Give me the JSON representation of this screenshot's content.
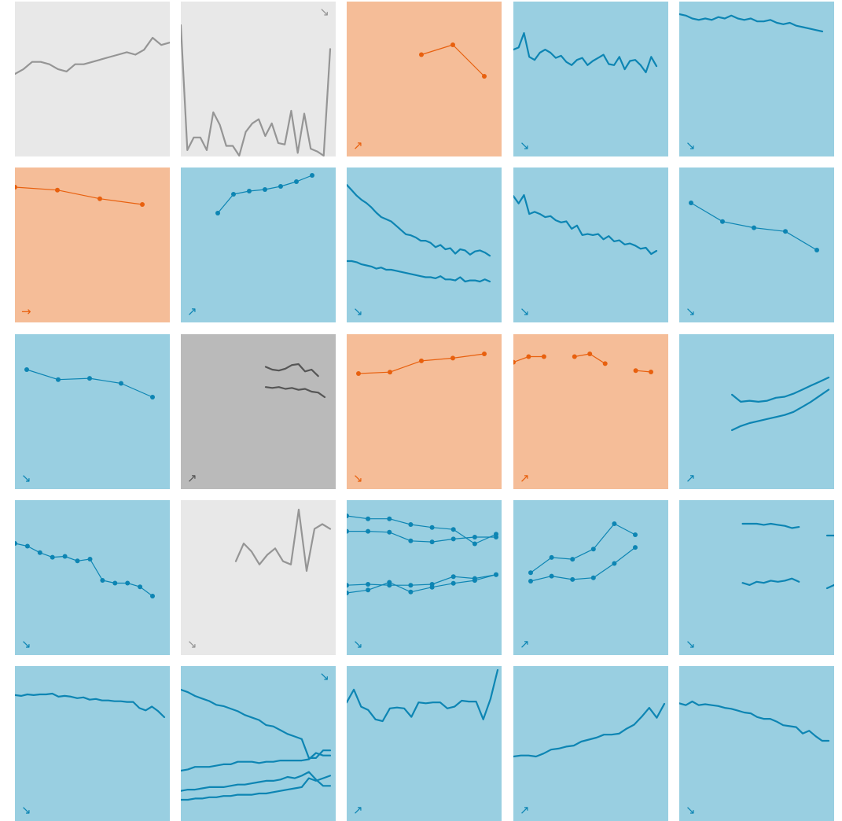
{
  "colors": {
    "blue_bg": "#99cfe1",
    "blue_fg": "#0d85b3",
    "orange_bg": "#f5bd98",
    "orange_fg": "#e8600e",
    "light_gray_bg": "#e8e8e8",
    "light_gray_fg": "#959595",
    "dark_gray_bg": "#bababa",
    "dark_gray_fg": "#555555"
  },
  "arrow_glyphs": {
    "up": "↗",
    "down": "↘",
    "flat": "→"
  },
  "chart_data": [
    {
      "id": "r1c1",
      "type": "line",
      "theme": "light_gray",
      "trend": null,
      "markers": false,
      "series": [
        {
          "values": [
            44,
            46,
            49,
            49,
            48,
            46,
            45,
            48,
            48,
            49,
            50,
            51,
            52,
            53,
            52,
            54,
            59,
            56,
            57
          ]
        }
      ]
    },
    {
      "id": "r1c2",
      "type": "line",
      "theme": "light_gray",
      "trend": "down",
      "markers": false,
      "series": [
        {
          "values": [
            93,
            4,
            13,
            13,
            4,
            31,
            22,
            7,
            7,
            0,
            17,
            23,
            26,
            14,
            23,
            9,
            8,
            32,
            2,
            30,
            5,
            3,
            0,
            76
          ]
        }
      ]
    },
    {
      "id": "r1c3",
      "type": "line",
      "theme": "orange",
      "trend": "up",
      "markers": true,
      "series": [
        {
          "values": [
            61,
            76,
            28
          ]
        }
      ]
    },
    {
      "id": "r1c4",
      "type": "line",
      "theme": "blue",
      "trend": "down",
      "markers": false,
      "series": [
        {
          "values": [
            55,
            57,
            71,
            48,
            45,
            52,
            55,
            52,
            47,
            49,
            43,
            40,
            45,
            47,
            40,
            44,
            47,
            50,
            41,
            40,
            48,
            36,
            44,
            45,
            40,
            33,
            48,
            39
          ]
        }
      ]
    },
    {
      "id": "r1c5",
      "type": "line",
      "theme": "blue",
      "trend": "down",
      "markers": false,
      "series": [
        {
          "values": [
            75,
            74,
            72,
            71,
            72,
            71,
            73,
            72,
            74,
            72,
            71,
            72,
            70,
            70,
            71,
            69,
            68,
            69,
            67,
            66,
            65,
            64,
            63
          ]
        }
      ]
    },
    {
      "id": "r2c1",
      "type": "line",
      "theme": "orange",
      "trend": "flat",
      "markers": true,
      "series": [
        {
          "values": [
            70,
            68,
            62,
            58
          ]
        }
      ]
    },
    {
      "id": "r2c2",
      "type": "line",
      "theme": "blue",
      "trend": "up",
      "markers": true,
      "series": [
        {
          "values": [
            50,
            62,
            64,
            65,
            67,
            70,
            74
          ]
        }
      ]
    },
    {
      "id": "r2c3",
      "type": "line",
      "theme": "blue",
      "trend": "down",
      "markers": false,
      "series": [
        {
          "values": [
            100,
            95,
            90,
            86,
            83,
            79,
            74,
            70,
            68,
            66,
            62,
            58,
            54,
            53,
            51,
            48,
            48,
            46,
            42,
            44,
            40,
            41,
            36,
            40,
            39,
            35,
            38,
            39,
            37,
            34
          ]
        },
        {
          "values": [
            29,
            29,
            28,
            26,
            25,
            24,
            22,
            23,
            21,
            21,
            20,
            19,
            18,
            17,
            16,
            15,
            14,
            14,
            13,
            15,
            12,
            12,
            11,
            14,
            10,
            11,
            11,
            10,
            12,
            10
          ]
        }
      ]
    },
    {
      "id": "r2c4",
      "type": "line",
      "theme": "blue",
      "trend": "down",
      "markers": false,
      "series": [
        {
          "values": [
            95,
            88,
            96,
            78,
            80,
            78,
            75,
            76,
            72,
            70,
            71,
            64,
            67,
            58,
            59,
            58,
            59,
            54,
            57,
            52,
            53,
            49,
            50,
            48,
            45,
            46,
            40,
            43
          ]
        }
      ]
    },
    {
      "id": "r2c5",
      "type": "line",
      "theme": "blue",
      "trend": "down",
      "markers": true,
      "series": [
        {
          "values": [
            70,
            55,
            50,
            47,
            32
          ]
        }
      ]
    },
    {
      "id": "r3c1",
      "type": "line",
      "theme": "blue",
      "trend": "down",
      "markers": true,
      "series": [
        {
          "values": [
            85,
            77,
            78,
            74,
            63
          ]
        }
      ]
    },
    {
      "id": "r3c2",
      "type": "line",
      "theme": "dark_gray",
      "trend": "up",
      "markers": false,
      "series": [
        {
          "values": [
            80,
            77,
            76,
            78,
            82,
            83,
            75,
            77,
            70
          ]
        },
        {
          "values": [
            58,
            57,
            58,
            56,
            57,
            55,
            56,
            53,
            52,
            47
          ]
        }
      ]
    },
    {
      "id": "r3c3",
      "type": "line",
      "theme": "orange",
      "trend": "down",
      "markers": true,
      "series": [
        {
          "values": [
            71,
            72,
            80,
            82,
            85
          ]
        }
      ]
    },
    {
      "id": "r3c4",
      "type": "line",
      "theme": "orange",
      "trend": "up",
      "markers": true,
      "series": [
        {
          "values": [
            80,
            84,
            84,
            null,
            84,
            86,
            79,
            null,
            74,
            73
          ]
        }
      ]
    },
    {
      "id": "r3c5",
      "type": "line",
      "theme": "blue",
      "trend": "up",
      "markers": false,
      "series": [
        {
          "values": [
            null,
            null,
            null,
            null,
            null,
            null,
            48,
            41,
            42,
            41,
            42,
            45,
            46,
            49,
            53,
            57,
            61,
            65
          ]
        },
        {
          "values": [
            null,
            null,
            null,
            null,
            null,
            null,
            13,
            17,
            20,
            22,
            24,
            26,
            28,
            31,
            36,
            41,
            47,
            53
          ]
        }
      ]
    },
    {
      "id": "r4c1",
      "type": "line",
      "theme": "blue",
      "trend": "down",
      "markers": true,
      "series": [
        {
          "values": [
            90,
            87,
            80,
            75,
            76,
            71,
            73,
            50,
            47,
            47,
            43,
            33
          ]
        }
      ]
    },
    {
      "id": "r4c2",
      "type": "line",
      "theme": "light_gray",
      "trend": "down",
      "markers": false,
      "series": [
        {
          "values": [
            null,
            null,
            null,
            null,
            null,
            null,
            null,
            62,
            73,
            68,
            60,
            66,
            70,
            62,
            60,
            94,
            56,
            82,
            85,
            82
          ]
        }
      ]
    },
    {
      "id": "r4c3",
      "type": "line",
      "theme": "blue",
      "trend": "down",
      "markers": true,
      "series": [
        {
          "values": [
            100,
            97,
            97,
            91,
            88,
            86,
            71,
            81
          ]
        },
        {
          "values": [
            84,
            84,
            83,
            74,
            73,
            76,
            78,
            78
          ]
        },
        {
          "values": [
            28,
            29,
            28,
            28,
            29,
            37,
            35,
            39
          ]
        },
        {
          "values": [
            20,
            23,
            31,
            21,
            26,
            30,
            33,
            39
          ]
        }
      ]
    },
    {
      "id": "r4c4",
      "type": "line",
      "theme": "blue",
      "trend": "up",
      "markers": true,
      "series": [
        {
          "values": [
            42,
            60,
            58,
            70,
            100,
            87
          ]
        },
        {
          "values": [
            32,
            38,
            34,
            36,
            53,
            72
          ]
        }
      ]
    },
    {
      "id": "r4c5",
      "type": "line",
      "theme": "blue",
      "trend": "down",
      "markers": false,
      "series": [
        {
          "values": [
            null,
            null,
            null,
            null,
            null,
            null,
            null,
            null,
            null,
            85,
            85,
            85,
            84,
            85,
            84,
            83,
            81,
            82,
            null,
            null,
            null,
            74,
            74
          ]
        },
        {
          "values": [
            null,
            null,
            null,
            null,
            null,
            null,
            null,
            null,
            null,
            30,
            28,
            31,
            30,
            32,
            31,
            32,
            34,
            31,
            null,
            null,
            null,
            25,
            28
          ]
        }
      ]
    },
    {
      "id": "r5c1",
      "type": "line",
      "theme": "blue",
      "trend": "down",
      "markers": false,
      "series": [
        {
          "values": [
            82,
            81,
            83,
            82,
            83,
            83,
            84,
            80,
            81,
            80,
            78,
            79,
            76,
            77,
            75,
            75,
            74,
            74,
            73,
            73,
            65,
            62,
            67,
            61,
            53
          ]
        }
      ]
    },
    {
      "id": "r5c2",
      "type": "line",
      "theme": "blue",
      "trend": "down",
      "markers": false,
      "series": [
        {
          "values": [
            92,
            90,
            87,
            85,
            83,
            80,
            79,
            77,
            75,
            72,
            70,
            68,
            64,
            63,
            60,
            57,
            55,
            53,
            38,
            38,
            44,
            44
          ]
        },
        {
          "values": [
            28,
            29,
            31,
            31,
            31,
            32,
            33,
            33,
            35,
            35,
            35,
            34,
            35,
            35,
            36,
            36,
            36,
            36,
            37,
            42,
            40,
            40
          ]
        },
        {
          "values": [
            12,
            13,
            13,
            14,
            15,
            15,
            15,
            16,
            17,
            17,
            18,
            19,
            20,
            20,
            21,
            23,
            22,
            24,
            27,
            21,
            16,
            16
          ]
        },
        {
          "values": [
            5,
            5,
            6,
            6,
            7,
            7,
            8,
            8,
            9,
            9,
            9,
            10,
            10,
            11,
            12,
            13,
            14,
            15,
            22,
            20,
            22,
            24
          ]
        }
      ]
    },
    {
      "id": "r5c3",
      "type": "line",
      "theme": "blue",
      "trend": "up",
      "markers": false,
      "series": [
        {
          "values": [
            62,
            77,
            57,
            53,
            42,
            40,
            55,
            56,
            55,
            45,
            62,
            61,
            62,
            62,
            55,
            57,
            64,
            63,
            63,
            42,
            66,
            100
          ]
        }
      ]
    },
    {
      "id": "r5c4",
      "type": "line",
      "theme": "blue",
      "trend": "up",
      "markers": false,
      "series": [
        {
          "values": [
            30,
            31,
            31,
            30,
            33,
            37,
            38,
            40,
            41,
            45,
            47,
            49,
            52,
            52,
            53,
            58,
            62,
            70,
            79,
            69,
            83
          ]
        }
      ]
    },
    {
      "id": "r5c5",
      "type": "line",
      "theme": "blue",
      "trend": "down",
      "markers": false,
      "series": [
        {
          "values": [
            81,
            79,
            83,
            79,
            80,
            79,
            78,
            76,
            75,
            73,
            71,
            70,
            66,
            64,
            64,
            61,
            57,
            56,
            55,
            48,
            51,
            45,
            40,
            40
          ]
        }
      ]
    }
  ]
}
